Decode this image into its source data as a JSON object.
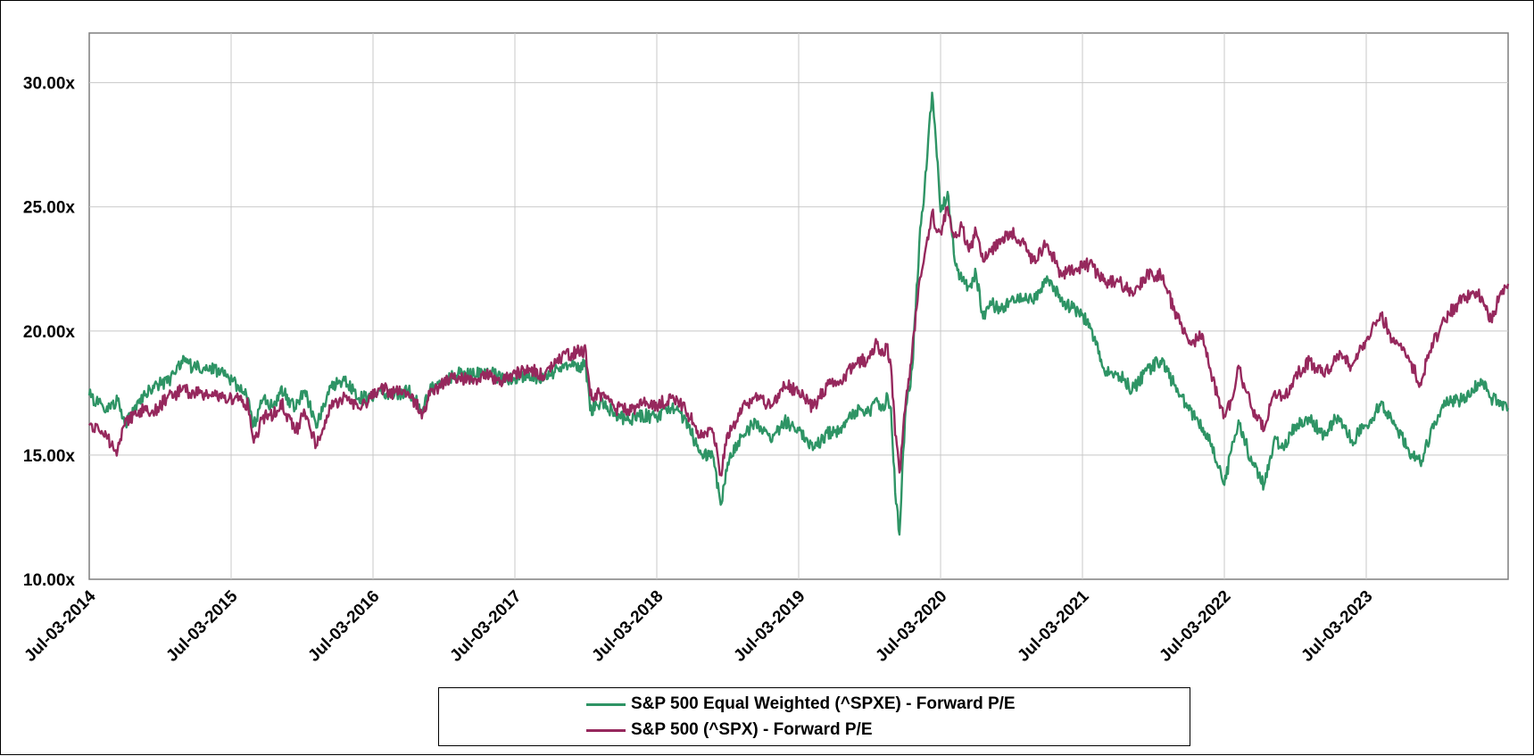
{
  "chart_data": {
    "type": "line",
    "title": "",
    "xlabel": "",
    "ylabel": "",
    "ylim": [
      10,
      32
    ],
    "y_ticks": [
      {
        "value": 10,
        "label": "10.00x"
      },
      {
        "value": 15,
        "label": "15.00x"
      },
      {
        "value": 20,
        "label": "20.00x"
      },
      {
        "value": 25,
        "label": "25.00x"
      },
      {
        "value": 30,
        "label": "30.00x"
      }
    ],
    "x_range": [
      2014.5,
      2024.5
    ],
    "x_ticks": [
      {
        "value": 2014.5,
        "label": "Jul-03-2014"
      },
      {
        "value": 2015.5,
        "label": "Jul-03-2015"
      },
      {
        "value": 2016.5,
        "label": "Jul-03-2016"
      },
      {
        "value": 2017.5,
        "label": "Jul-03-2017"
      },
      {
        "value": 2018.5,
        "label": "Jul-03-2018"
      },
      {
        "value": 2019.5,
        "label": "Jul-03-2019"
      },
      {
        "value": 2020.5,
        "label": "Jul-03-2020"
      },
      {
        "value": 2021.5,
        "label": "Jul-03-2021"
      },
      {
        "value": 2022.5,
        "label": "Jul-03-2022"
      },
      {
        "value": 2023.5,
        "label": "Jul-03-2023"
      }
    ],
    "grid": true,
    "legend_position": "bottom-center",
    "series": [
      {
        "name": "S&P 500 Equal Weighted (^SPXE) - Forward P/E",
        "color": "#2e9465",
        "points": [
          [
            2014.5,
            17.4
          ],
          [
            2014.6,
            16.9
          ],
          [
            2014.7,
            17.2
          ],
          [
            2014.75,
            16.2
          ],
          [
            2014.85,
            17.1
          ],
          [
            2014.95,
            17.8
          ],
          [
            2015.05,
            17.9
          ],
          [
            2015.15,
            18.8
          ],
          [
            2015.25,
            18.5
          ],
          [
            2015.35,
            18.6
          ],
          [
            2015.45,
            18.2
          ],
          [
            2015.55,
            17.8
          ],
          [
            2015.62,
            17.3
          ],
          [
            2015.66,
            16.2
          ],
          [
            2015.72,
            17.2
          ],
          [
            2015.8,
            17.0
          ],
          [
            2015.85,
            17.7
          ],
          [
            2015.95,
            16.9
          ],
          [
            2016.02,
            17.6
          ],
          [
            2016.1,
            16.1
          ],
          [
            2016.2,
            17.8
          ],
          [
            2016.3,
            18.0
          ],
          [
            2016.4,
            17.3
          ],
          [
            2016.48,
            17.3
          ],
          [
            2016.55,
            17.6
          ],
          [
            2016.65,
            17.4
          ],
          [
            2016.75,
            17.6
          ],
          [
            2016.85,
            16.8
          ],
          [
            2016.9,
            17.6
          ],
          [
            2017.0,
            18.0
          ],
          [
            2017.1,
            18.3
          ],
          [
            2017.2,
            18.2
          ],
          [
            2017.3,
            18.4
          ],
          [
            2017.4,
            18.1
          ],
          [
            2017.5,
            18.1
          ],
          [
            2017.6,
            18.3
          ],
          [
            2017.7,
            18.0
          ],
          [
            2017.8,
            18.5
          ],
          [
            2017.9,
            18.6
          ],
          [
            2018.0,
            18.6
          ],
          [
            2018.03,
            16.8
          ],
          [
            2018.1,
            17.1
          ],
          [
            2018.2,
            16.7
          ],
          [
            2018.3,
            16.4
          ],
          [
            2018.4,
            16.6
          ],
          [
            2018.5,
            16.5
          ],
          [
            2018.6,
            16.9
          ],
          [
            2018.7,
            16.5
          ],
          [
            2018.8,
            15.1
          ],
          [
            2018.9,
            14.9
          ],
          [
            2018.95,
            13.0
          ],
          [
            2019.0,
            14.7
          ],
          [
            2019.1,
            15.8
          ],
          [
            2019.2,
            16.3
          ],
          [
            2019.3,
            15.6
          ],
          [
            2019.4,
            16.4
          ],
          [
            2019.5,
            16.0
          ],
          [
            2019.6,
            15.2
          ],
          [
            2019.7,
            15.9
          ],
          [
            2019.8,
            15.9
          ],
          [
            2019.9,
            16.8
          ],
          [
            2020.0,
            16.7
          ],
          [
            2020.05,
            17.3
          ],
          [
            2020.1,
            16.8
          ],
          [
            2020.12,
            17.5
          ],
          [
            2020.15,
            16.9
          ],
          [
            2020.18,
            13.5
          ],
          [
            2020.21,
            11.8
          ],
          [
            2020.25,
            16.5
          ],
          [
            2020.3,
            18.5
          ],
          [
            2020.35,
            23.5
          ],
          [
            2020.4,
            26.5
          ],
          [
            2020.44,
            29.6
          ],
          [
            2020.48,
            26.8
          ],
          [
            2020.5,
            24.8
          ],
          [
            2020.55,
            25.6
          ],
          [
            2020.6,
            22.8
          ],
          [
            2020.65,
            22.0
          ],
          [
            2020.7,
            21.8
          ],
          [
            2020.75,
            22.3
          ],
          [
            2020.8,
            20.5
          ],
          [
            2020.85,
            21.2
          ],
          [
            2020.92,
            20.8
          ],
          [
            2021.0,
            21.3
          ],
          [
            2021.1,
            21.5
          ],
          [
            2021.15,
            21.2
          ],
          [
            2021.25,
            22.2
          ],
          [
            2021.35,
            21.3
          ],
          [
            2021.45,
            20.8
          ],
          [
            2021.55,
            20.3
          ],
          [
            2021.65,
            18.5
          ],
          [
            2021.75,
            18.3
          ],
          [
            2021.85,
            17.6
          ],
          [
            2021.95,
            18.4
          ],
          [
            2022.05,
            18.8
          ],
          [
            2022.15,
            17.8
          ],
          [
            2022.25,
            16.8
          ],
          [
            2022.35,
            16.1
          ],
          [
            2022.4,
            15.5
          ],
          [
            2022.45,
            14.6
          ],
          [
            2022.5,
            13.8
          ],
          [
            2022.55,
            15.2
          ],
          [
            2022.6,
            16.4
          ],
          [
            2022.65,
            15.5
          ],
          [
            2022.7,
            14.6
          ],
          [
            2022.78,
            13.8
          ],
          [
            2022.85,
            15.6
          ],
          [
            2022.92,
            15.2
          ],
          [
            2023.0,
            16.2
          ],
          [
            2023.1,
            16.5
          ],
          [
            2023.2,
            15.8
          ],
          [
            2023.3,
            16.6
          ],
          [
            2023.4,
            15.6
          ],
          [
            2023.5,
            16.2
          ],
          [
            2023.6,
            17.0
          ],
          [
            2023.7,
            16.2
          ],
          [
            2023.8,
            15.2
          ],
          [
            2023.88,
            14.7
          ],
          [
            2023.95,
            15.8
          ],
          [
            2024.05,
            17.2
          ],
          [
            2024.15,
            17.2
          ],
          [
            2024.25,
            17.6
          ],
          [
            2024.32,
            18.0
          ],
          [
            2024.38,
            17.3
          ],
          [
            2024.45,
            17.0
          ],
          [
            2024.5,
            16.9
          ]
        ]
      },
      {
        "name": "S&P 500 (^SPX) - Forward P/E",
        "color": "#96285d",
        "points": [
          [
            2014.5,
            16.2
          ],
          [
            2014.6,
            15.8
          ],
          [
            2014.7,
            15.2
          ],
          [
            2014.75,
            16.2
          ],
          [
            2014.85,
            16.8
          ],
          [
            2014.95,
            16.7
          ],
          [
            2015.05,
            17.3
          ],
          [
            2015.15,
            17.6
          ],
          [
            2015.25,
            17.5
          ],
          [
            2015.35,
            17.4
          ],
          [
            2015.45,
            17.3
          ],
          [
            2015.55,
            17.2
          ],
          [
            2015.62,
            17.0
          ],
          [
            2015.66,
            15.5
          ],
          [
            2015.72,
            16.5
          ],
          [
            2015.8,
            16.6
          ],
          [
            2015.85,
            17.2
          ],
          [
            2015.95,
            15.9
          ],
          [
            2016.02,
            16.7
          ],
          [
            2016.1,
            15.4
          ],
          [
            2016.2,
            16.9
          ],
          [
            2016.3,
            17.4
          ],
          [
            2016.4,
            16.9
          ],
          [
            2016.48,
            17.3
          ],
          [
            2016.55,
            17.7
          ],
          [
            2016.65,
            17.5
          ],
          [
            2016.75,
            17.5
          ],
          [
            2016.85,
            16.7
          ],
          [
            2016.9,
            17.4
          ],
          [
            2017.0,
            17.9
          ],
          [
            2017.1,
            18.1
          ],
          [
            2017.2,
            18.0
          ],
          [
            2017.3,
            18.2
          ],
          [
            2017.4,
            18.0
          ],
          [
            2017.5,
            18.3
          ],
          [
            2017.6,
            18.5
          ],
          [
            2017.7,
            18.2
          ],
          [
            2017.8,
            18.9
          ],
          [
            2017.9,
            19.1
          ],
          [
            2018.0,
            19.2
          ],
          [
            2018.03,
            17.4
          ],
          [
            2018.1,
            17.5
          ],
          [
            2018.2,
            16.9
          ],
          [
            2018.3,
            16.8
          ],
          [
            2018.4,
            17.1
          ],
          [
            2018.5,
            17.0
          ],
          [
            2018.6,
            17.3
          ],
          [
            2018.7,
            16.9
          ],
          [
            2018.8,
            15.8
          ],
          [
            2018.9,
            15.9
          ],
          [
            2018.95,
            14.2
          ],
          [
            2019.0,
            15.9
          ],
          [
            2019.1,
            16.8
          ],
          [
            2019.2,
            17.5
          ],
          [
            2019.3,
            16.9
          ],
          [
            2019.4,
            17.8
          ],
          [
            2019.5,
            17.6
          ],
          [
            2019.6,
            16.9
          ],
          [
            2019.7,
            17.8
          ],
          [
            2019.8,
            17.9
          ],
          [
            2019.9,
            18.7
          ],
          [
            2020.0,
            18.9
          ],
          [
            2020.05,
            19.5
          ],
          [
            2020.1,
            19.0
          ],
          [
            2020.12,
            19.4
          ],
          [
            2020.15,
            18.6
          ],
          [
            2020.18,
            15.8
          ],
          [
            2020.21,
            14.3
          ],
          [
            2020.25,
            16.8
          ],
          [
            2020.3,
            19.2
          ],
          [
            2020.35,
            22.0
          ],
          [
            2020.4,
            23.5
          ],
          [
            2020.44,
            24.8
          ],
          [
            2020.48,
            24.0
          ],
          [
            2020.5,
            24.0
          ],
          [
            2020.55,
            25.0
          ],
          [
            2020.6,
            23.8
          ],
          [
            2020.65,
            24.2
          ],
          [
            2020.7,
            23.2
          ],
          [
            2020.75,
            24.0
          ],
          [
            2020.8,
            22.8
          ],
          [
            2020.85,
            23.2
          ],
          [
            2020.92,
            23.5
          ],
          [
            2021.0,
            24.0
          ],
          [
            2021.1,
            23.5
          ],
          [
            2021.15,
            22.8
          ],
          [
            2021.25,
            23.5
          ],
          [
            2021.35,
            22.3
          ],
          [
            2021.45,
            22.5
          ],
          [
            2021.55,
            22.7
          ],
          [
            2021.65,
            22.0
          ],
          [
            2021.75,
            22.0
          ],
          [
            2021.85,
            21.6
          ],
          [
            2021.95,
            22.2
          ],
          [
            2022.05,
            22.3
          ],
          [
            2022.15,
            20.8
          ],
          [
            2022.25,
            19.5
          ],
          [
            2022.35,
            19.8
          ],
          [
            2022.4,
            18.5
          ],
          [
            2022.45,
            17.4
          ],
          [
            2022.5,
            16.6
          ],
          [
            2022.55,
            17.2
          ],
          [
            2022.6,
            18.6
          ],
          [
            2022.65,
            17.6
          ],
          [
            2022.7,
            16.8
          ],
          [
            2022.78,
            16.0
          ],
          [
            2022.85,
            17.5
          ],
          [
            2022.92,
            17.3
          ],
          [
            2023.0,
            18.2
          ],
          [
            2023.1,
            18.8
          ],
          [
            2023.2,
            18.2
          ],
          [
            2023.3,
            19.0
          ],
          [
            2023.4,
            18.6
          ],
          [
            2023.5,
            19.6
          ],
          [
            2023.6,
            20.7
          ],
          [
            2023.7,
            19.5
          ],
          [
            2023.8,
            18.9
          ],
          [
            2023.88,
            17.9
          ],
          [
            2023.95,
            19.2
          ],
          [
            2024.05,
            20.5
          ],
          [
            2024.15,
            21.1
          ],
          [
            2024.25,
            21.6
          ],
          [
            2024.32,
            21.3
          ],
          [
            2024.38,
            20.4
          ],
          [
            2024.45,
            21.6
          ],
          [
            2024.5,
            21.9
          ]
        ]
      }
    ]
  }
}
